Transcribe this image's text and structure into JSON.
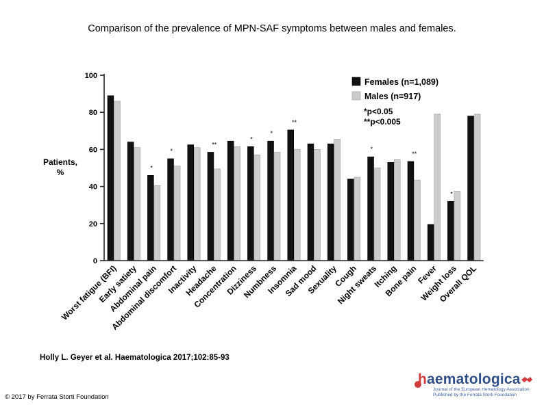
{
  "title": "Comparison of the prevalence of MPN-SAF symptoms between males and females.",
  "citation": "Holly L. Geyer et al. Haematologica 2017;102:85-93",
  "copyright": "© 2017 by Ferrata Storti Foundation",
  "logo": {
    "word_h": "h",
    "word_rest": "aematologica",
    "tagline_1": "Journal of the European Hematology Association",
    "tagline_2": "Published by the Ferrata Storti Foundation"
  },
  "chart_data": {
    "type": "bar",
    "ylabel_line1": "Patients,",
    "ylabel_line2": "%",
    "xlabel": "",
    "ylim": [
      0,
      100
    ],
    "yticks": [
      0,
      20,
      40,
      60,
      80,
      100
    ],
    "categories": [
      "Worst fatigue (BFI)",
      "Early satiety",
      "Abdominal pain",
      "Abdominal discomfort",
      "Inactivity",
      "Headache",
      "Concentration",
      "Dizziness",
      "Numbness",
      "Insomnia",
      "Sad mood",
      "Sexuality",
      "Cough",
      "Night sweats",
      "Itching",
      "Bone pain",
      "Fever",
      "Weight loss",
      "Overall QOL"
    ],
    "series": [
      {
        "name": "Females (n=1,089)",
        "color": "#111111",
        "values": [
          89,
          64,
          46,
          55,
          62.5,
          58.5,
          64.5,
          61.5,
          64.5,
          70.5,
          63,
          63,
          44,
          56,
          53,
          53.5,
          19.5,
          32,
          78
        ]
      },
      {
        "name": "Males (n=917)",
        "color": "#cccccc",
        "values": [
          86,
          61,
          40.5,
          51,
          61,
          49.5,
          61.5,
          57,
          58.5,
          60,
          60,
          65.5,
          45,
          50,
          54.5,
          43.5,
          79,
          37.5,
          79
        ]
      }
    ],
    "significance": [
      "",
      "",
      "*",
      "*",
      "",
      "**",
      "",
      "*",
      "*",
      "**",
      "",
      "",
      "",
      "*",
      "",
      "**",
      "",
      "*",
      ""
    ],
    "significance_key": [
      "*p<0.05",
      "**p<0.005"
    ],
    "legend_position": "top-right",
    "grid": false
  }
}
